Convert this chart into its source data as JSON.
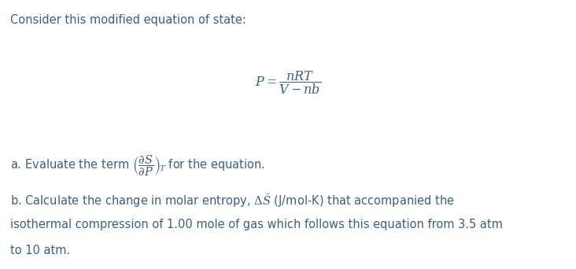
{
  "background_color": "#ffffff",
  "text_color": "#3d6080",
  "title_line": "Consider this modified equation of state:",
  "fig_width": 7.32,
  "fig_height": 3.42,
  "dpi": 100,
  "fontsize_main": 10.5,
  "fontsize_eq": 11.5
}
